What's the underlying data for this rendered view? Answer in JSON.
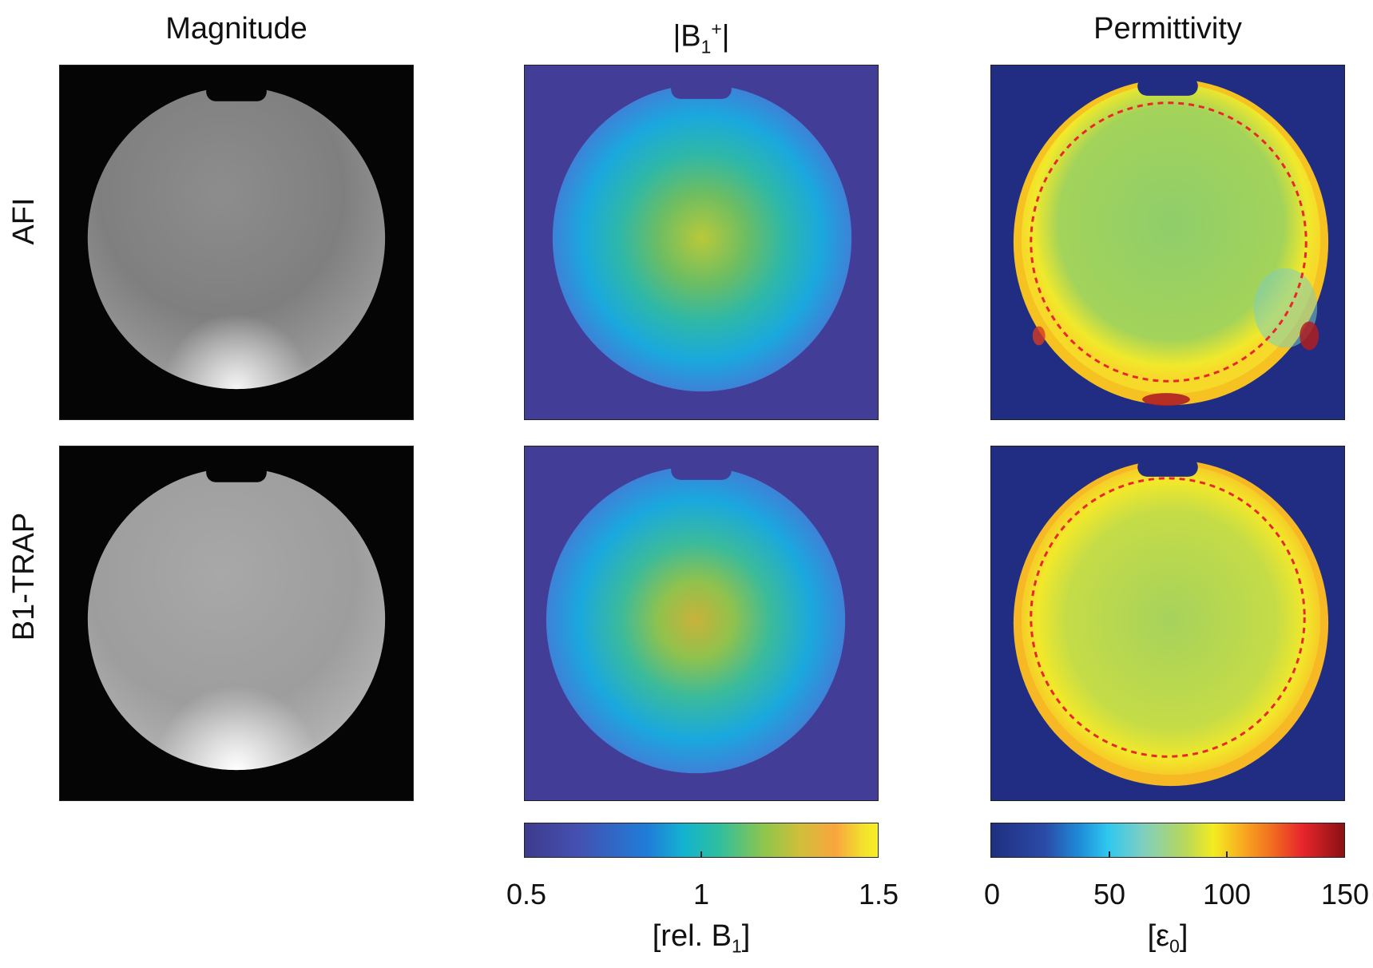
{
  "columns": {
    "magnitude": "Magnitude",
    "b1": "|B",
    "b1_sub": "1",
    "b1_sup": "+",
    "b1_end": "|",
    "permittivity": "Permittivity"
  },
  "rows": {
    "afi": "AFI",
    "b1trap": "B1-TRAP"
  },
  "colorbars": {
    "b1": {
      "ticks": [
        "0.5",
        "1",
        "1.5"
      ],
      "unit_pre": "[rel. B",
      "unit_sub": "1",
      "unit_post": "]",
      "colormap": "parula",
      "range": [
        0.5,
        1.5
      ]
    },
    "eps": {
      "ticks": [
        "0",
        "50",
        "100",
        "150"
      ],
      "unit_pre": "[ε",
      "unit_sub": "0",
      "unit_post": "]",
      "colormap": "jet",
      "range": [
        0,
        150
      ]
    }
  },
  "colors": {
    "contour": "#e8262b",
    "parula_bg": "#3e3b8e",
    "jet_bg": "#1f2f80"
  }
}
